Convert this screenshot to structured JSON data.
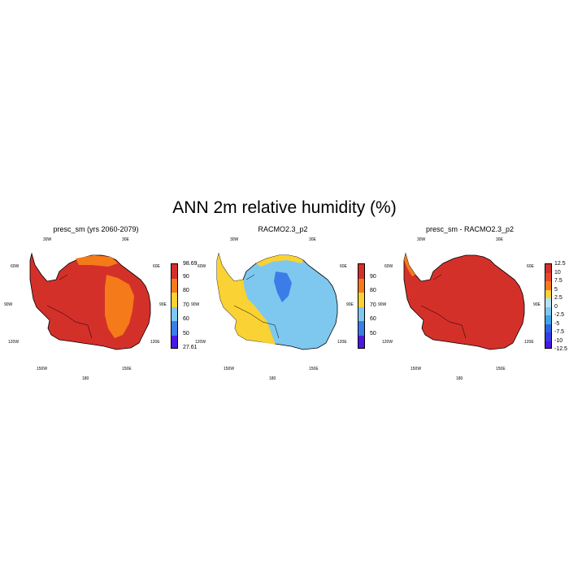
{
  "title": "ANN 2m relative humidity (%)",
  "panels": [
    {
      "title": "presc_sm (yrs 2060-2079)",
      "lon_labels": [
        "30W",
        "30E",
        "60W",
        "60E",
        "90W",
        "90E",
        "120W",
        "120E",
        "150W",
        "150E",
        "180"
      ],
      "fill_color": "#d4302a",
      "patch_color": "#f57a1a",
      "colorbar": {
        "colors": [
          "#d4302a",
          "#f57a1a",
          "#fad233",
          "#7ec8f0",
          "#3a7de8",
          "#4b18e6"
        ],
        "labels": [
          "98.69",
          "90",
          "80",
          "70",
          "60",
          "50",
          "27.61"
        ]
      }
    },
    {
      "title": "RACMO2.3_p2",
      "lon_labels": [
        "30W",
        "30E",
        "60W",
        "60E",
        "90W",
        "90E",
        "120W",
        "120E",
        "150W",
        "150E",
        "180"
      ],
      "fill_color": "#7ec8f0",
      "patch_color": "#fad233",
      "colorbar": {
        "colors": [
          "#d4302a",
          "#f57a1a",
          "#fad233",
          "#7ec8f0",
          "#3a7de8",
          "#4b18e6"
        ],
        "labels": [
          "90",
          "80",
          "70",
          "60",
          "50"
        ]
      }
    },
    {
      "title": "presc_sm - RACMO2.3_p2",
      "lon_labels": [
        "30W",
        "30E",
        "60W",
        "60E",
        "90W",
        "90E",
        "120W",
        "120E",
        "150W",
        "150E",
        "180"
      ],
      "fill_color": "#d4302a",
      "patch_color": "#f57a1a",
      "colorbar": {
        "colors": [
          "#d4302a",
          "#e8482a",
          "#f57a1a",
          "#fad233",
          "#b3e1f7",
          "#7ec8f0",
          "#3fa5e8",
          "#2a64e0",
          "#3a3ae6",
          "#4b18e6"
        ],
        "labels": [
          "12.5",
          "10",
          "7.5",
          "5",
          "2.5",
          "0",
          "-2.5",
          "-5",
          "-7.5",
          "-10",
          "-12.5"
        ]
      }
    }
  ]
}
